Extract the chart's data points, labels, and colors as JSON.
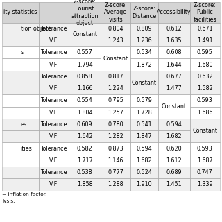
{
  "col_headers": [
    "ity statistics",
    "",
    "Z-score:\nTourist\nattraction\nobject",
    "Z-score:\nAverage\nvisits",
    "Z-score:\nDistance",
    "Accessibility",
    "Z-score:\nPublic\nfacilities"
  ],
  "groups": [
    {
      "label": "tion object",
      "tol_row": [
        "Constant",
        "0.804",
        "0.809",
        "0.612",
        "0.671"
      ],
      "vif_row": [
        "Constant",
        "1.243",
        "1.236",
        "1.635",
        "1.491"
      ],
      "constant_col": 0
    },
    {
      "label": "s",
      "tol_row": [
        "0.557",
        "Constant",
        "0.534",
        "0.608",
        "0.595"
      ],
      "vif_row": [
        "1.794",
        "Constant",
        "1.872",
        "1.644",
        "1.680"
      ],
      "constant_col": 1
    },
    {
      "label": "",
      "tol_row": [
        "0.858",
        "0.817",
        "Constant",
        "0.677",
        "0.632"
      ],
      "vif_row": [
        "1.166",
        "1.224",
        "Constant",
        "1.477",
        "1.582"
      ],
      "constant_col": 2
    },
    {
      "label": "",
      "tol_row": [
        "0.554",
        "0.795",
        "0.579",
        "Constant",
        "0.593"
      ],
      "vif_row": [
        "1.804",
        "1.257",
        "1.728",
        "Constant",
        "1.686"
      ],
      "constant_col": 3
    },
    {
      "label": "es",
      "tol_row": [
        "0.609",
        "0.780",
        "0.541",
        "0.594",
        "Constant"
      ],
      "vif_row": [
        "1.642",
        "1.282",
        "1.847",
        "1.682",
        "Constant"
      ],
      "constant_col": 4
    },
    {
      "label": "ities",
      "tol_row": [
        "0.582",
        "0.873",
        "0.594",
        "0.620",
        "0.593"
      ],
      "vif_row": [
        "1.717",
        "1.146",
        "1.682",
        "1.612",
        "1.687"
      ],
      "constant_col": -1
    },
    {
      "label": "",
      "tol_row": [
        "0.538",
        "0.777",
        "0.524",
        "0.689",
        "0.747"
      ],
      "vif_row": [
        "1.858",
        "1.288",
        "1.910",
        "1.451",
        "1.339"
      ],
      "constant_col": -1
    }
  ],
  "footer": [
    "= inflation factor.",
    "lysis."
  ],
  "header_bg": "#d4d4d4",
  "even_bg": "#efefef",
  "odd_bg": "#ffffff",
  "border_color": "#aaaaaa",
  "font_size": 5.8
}
